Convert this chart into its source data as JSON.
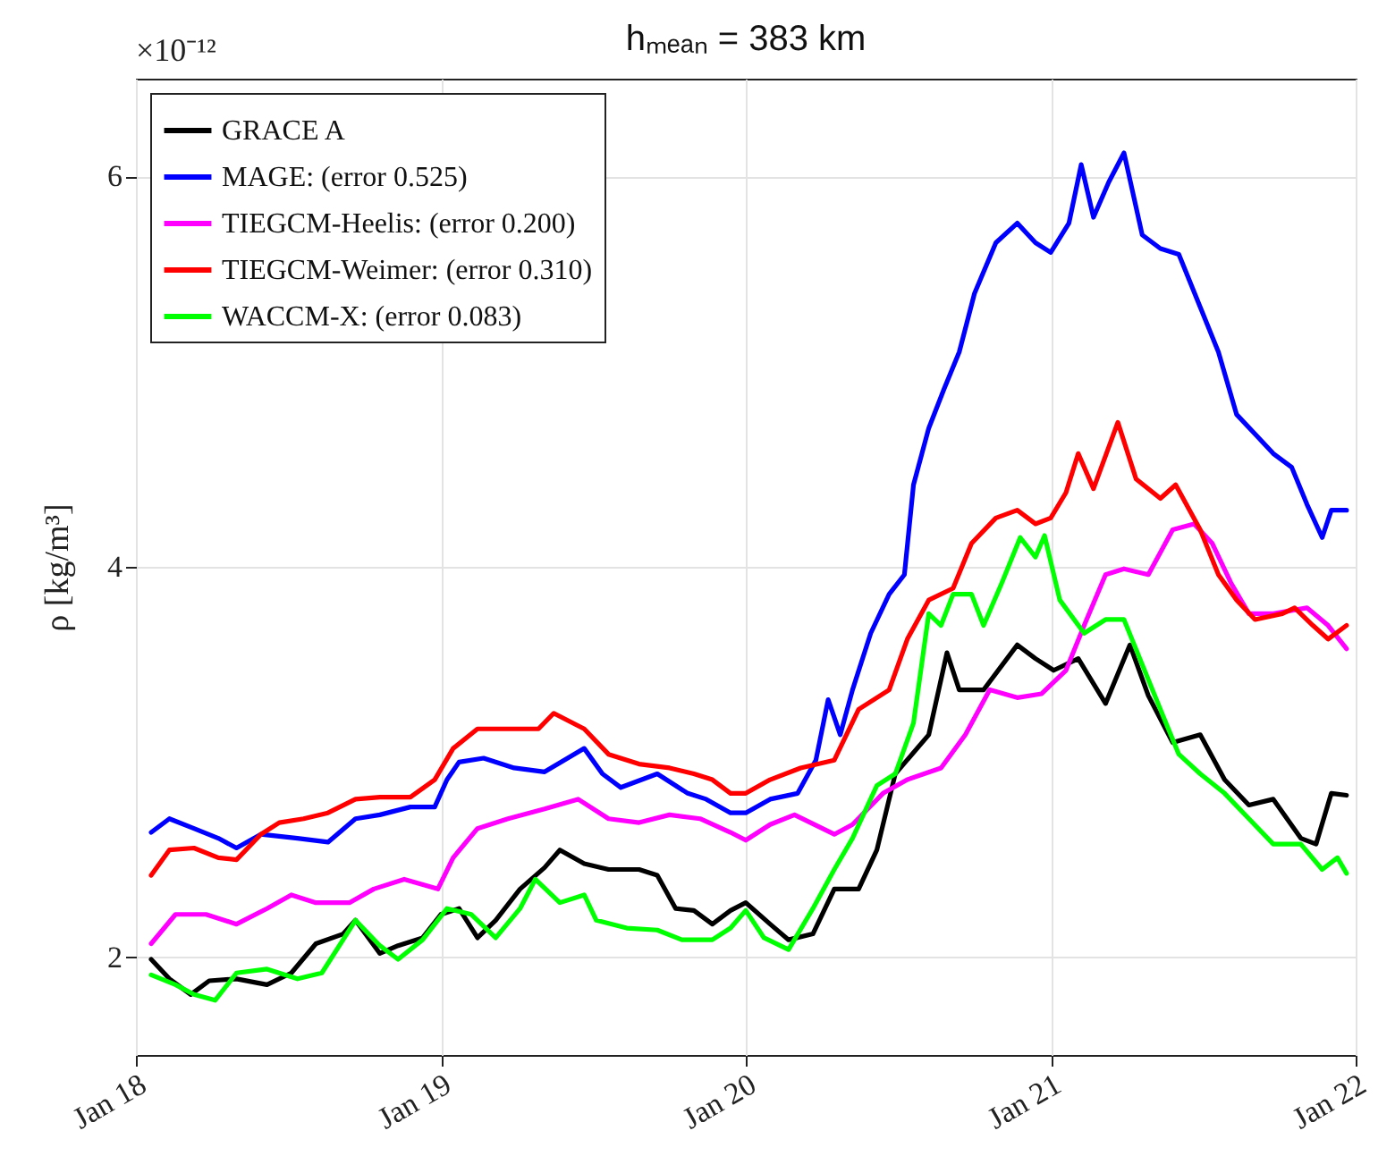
{
  "chart_data": {
    "type": "line",
    "title": "hₘₑₐₙ = 383 km",
    "ylabel": "ρ [kg/m³]",
    "annotations": [
      "×10⁻¹²"
    ],
    "xlim": [
      "--01-18",
      "--01-22"
    ],
    "xticks": [
      {
        "value": "--01-18",
        "label": "Jan 18"
      },
      {
        "value": "--01-19",
        "label": "Jan 19"
      },
      {
        "value": "--01-20",
        "label": "Jan 20"
      },
      {
        "value": "--01-21",
        "label": "Jan 21"
      },
      {
        "value": "--01-22",
        "label": "Jan 22"
      }
    ],
    "ylim": [
      1.5,
      6.5
    ],
    "yticks": [
      2,
      4,
      6
    ],
    "grid": true,
    "legend": "top left",
    "line_style": "solid",
    "series": [
      {
        "name": "GRACE A",
        "color": "#000000",
        "x": [
          "--01-18T01:12",
          "--01-18T02:38",
          "--01-18T04:19",
          "--01-18T05:46",
          "--01-18T07:55",
          "--01-18T10:19",
          "--01-18T12:14",
          "--01-18T14:10",
          "--01-18T16:19",
          "--01-18T17:17",
          "--01-18T19:12",
          "--01-18T20:38",
          "--01-18T22:34",
          "--01-19T00:00",
          "--01-19T01:26",
          "--01-19T02:53",
          "--01-19T04:19",
          "--01-19T06:14",
          "--01-19T08:10",
          "--01-19T09:22",
          "--01-19T11:17",
          "--01-19T13:12",
          "--01-19T15:36",
          "--01-19T17:02",
          "--01-19T18:29",
          "--01-19T19:55",
          "--01-19T21:22",
          "--01-19T22:48",
          "--01-20T00:00",
          "--01-20T01:55",
          "--01-20T03:22",
          "--01-20T05:17",
          "--01-20T06:58",
          "--01-20T08:53",
          "--01-20T10:19",
          "--01-20T11:46",
          "--01-20T14:24",
          "--01-20T15:50",
          "--01-20T16:48",
          "--01-20T18:43",
          "--01-20T21:22",
          "--01-20T22:48",
          "--01-21T00:14",
          "--01-21T02:10",
          "--01-21T04:19",
          "--01-21T06:14",
          "--01-21T07:41",
          "--01-21T09:36",
          "--01-21T11:46",
          "--01-21T13:41",
          "--01-21T15:36",
          "--01-21T17:31",
          "--01-21T19:41",
          "--01-21T20:53",
          "--01-21T22:05",
          "--01-21T23:17"
        ],
        "values": [
          1.99,
          1.89,
          1.81,
          1.88,
          1.89,
          1.86,
          1.92,
          2.07,
          2.12,
          2.19,
          2.02,
          2.06,
          2.1,
          2.22,
          2.25,
          2.1,
          2.19,
          2.35,
          2.46,
          2.55,
          2.48,
          2.45,
          2.45,
          2.42,
          2.25,
          2.24,
          2.17,
          2.24,
          2.28,
          2.17,
          2.09,
          2.12,
          2.35,
          2.35,
          2.55,
          2.94,
          3.14,
          3.56,
          3.37,
          3.37,
          3.6,
          3.53,
          3.47,
          3.53,
          3.3,
          3.6,
          3.34,
          3.1,
          3.14,
          2.91,
          2.78,
          2.81,
          2.61,
          2.58,
          2.84,
          2.83
        ]
      },
      {
        "name": "MAGE: (error 0.525)",
        "color": "#0000ff",
        "x": [
          "--01-18T01:12",
          "--01-18T02:38",
          "--01-18T04:34",
          "--01-18T06:29",
          "--01-18T07:55",
          "--01-18T09:50",
          "--01-18T12:43",
          "--01-18T15:07",
          "--01-18T17:17",
          "--01-18T19:12",
          "--01-18T21:36",
          "--01-18T23:31",
          "--01-19T00:29",
          "--01-19T01:26",
          "--01-19T03:22",
          "--01-19T05:46",
          "--01-19T08:10",
          "--01-19T11:17",
          "--01-19T12:43",
          "--01-19T14:10",
          "--01-19T17:02",
          "--01-19T19:26",
          "--01-19T20:53",
          "--01-19T22:48",
          "--01-20T00:00",
          "--01-20T01:55",
          "--01-20T04:05",
          "--01-20T05:31",
          "--01-20T06:29",
          "--01-20T07:26",
          "--01-20T08:24",
          "--01-20T09:50",
          "--01-20T11:17",
          "--01-20T12:29",
          "--01-20T13:12",
          "--01-20T14:24",
          "--01-20T15:36",
          "--01-20T16:48",
          "--01-20T18:00",
          "--01-20T19:41",
          "--01-20T21:22",
          "--01-20T22:48",
          "--01-21T00:00",
          "--01-21T01:26",
          "--01-21T02:24",
          "--01-21T03:22",
          "--01-21T04:34",
          "--01-21T05:46",
          "--01-21T07:12",
          "--01-21T08:38",
          "--01-21T10:05",
          "--01-21T11:46",
          "--01-21T13:12",
          "--01-21T14:38",
          "--01-21T16:05",
          "--01-21T17:31",
          "--01-21T18:58",
          "--01-21T20:10",
          "--01-21T21:22",
          "--01-21T22:05",
          "--01-21T23:17"
        ],
        "values": [
          2.64,
          2.71,
          2.66,
          2.61,
          2.56,
          2.63,
          2.61,
          2.59,
          2.71,
          2.73,
          2.77,
          2.77,
          2.91,
          3.0,
          3.02,
          2.97,
          2.95,
          3.07,
          2.94,
          2.87,
          2.94,
          2.84,
          2.81,
          2.74,
          2.74,
          2.81,
          2.84,
          3.01,
          3.32,
          3.14,
          3.37,
          3.66,
          3.86,
          3.96,
          4.42,
          4.71,
          4.91,
          5.1,
          5.4,
          5.66,
          5.76,
          5.66,
          5.61,
          5.76,
          6.06,
          5.79,
          5.97,
          6.12,
          5.7,
          5.63,
          5.6,
          5.33,
          5.1,
          4.78,
          4.68,
          4.58,
          4.51,
          4.32,
          4.15,
          4.29,
          4.29
        ]
      },
      {
        "name": "TIEGCM-Heelis: (error 0.200)",
        "color": "#ff00ff",
        "x": [
          "--01-18T01:12",
          "--01-18T03:07",
          "--01-18T05:31",
          "--01-18T07:55",
          "--01-18T10:19",
          "--01-18T12:14",
          "--01-18T14:10",
          "--01-18T16:48",
          "--01-18T18:43",
          "--01-18T21:07",
          "--01-18T23:46",
          "--01-19T00:58",
          "--01-19T02:53",
          "--01-19T05:17",
          "--01-19T08:10",
          "--01-19T10:48",
          "--01-19T13:12",
          "--01-19T15:36",
          "--01-19T18:00",
          "--01-19T20:24",
          "--01-19T22:48",
          "--01-20T00:00",
          "--01-20T01:55",
          "--01-20T03:50",
          "--01-20T06:58",
          "--01-20T08:24",
          "--01-20T10:48",
          "--01-20T12:43",
          "--01-20T15:22",
          "--01-20T17:17",
          "--01-20T19:12",
          "--01-20T21:22",
          "--01-20T23:17",
          "--01-21T01:12",
          "--01-21T02:38",
          "--01-21T04:19",
          "--01-21T05:46",
          "--01-21T07:41",
          "--01-21T09:36",
          "--01-21T11:17",
          "--01-21T12:43",
          "--01-21T14:10",
          "--01-21T15:36",
          "--01-21T17:31",
          "--01-21T20:10",
          "--01-21T21:50",
          "--01-21T23:17"
        ],
        "values": [
          2.07,
          2.22,
          2.22,
          2.17,
          2.25,
          2.32,
          2.28,
          2.28,
          2.35,
          2.4,
          2.35,
          2.51,
          2.66,
          2.71,
          2.76,
          2.81,
          2.71,
          2.69,
          2.73,
          2.71,
          2.64,
          2.6,
          2.68,
          2.73,
          2.63,
          2.68,
          2.84,
          2.91,
          2.97,
          3.14,
          3.37,
          3.33,
          3.35,
          3.47,
          3.7,
          3.96,
          3.99,
          3.96,
          4.19,
          4.22,
          4.12,
          3.92,
          3.76,
          3.76,
          3.79,
          3.7,
          3.58
        ]
      },
      {
        "name": "TIEGCM-Weimer: (error 0.310)",
        "color": "#ff0000",
        "x": [
          "--01-18T01:12",
          "--01-18T02:38",
          "--01-18T04:34",
          "--01-18T06:29",
          "--01-18T07:55",
          "--01-18T09:50",
          "--01-18T11:17",
          "--01-18T13:12",
          "--01-18T15:07",
          "--01-18T17:17",
          "--01-18T19:12",
          "--01-18T21:36",
          "--01-18T23:31",
          "--01-19T00:58",
          "--01-19T02:53",
          "--01-19T05:17",
          "--01-19T07:41",
          "--01-19T08:53",
          "--01-19T11:17",
          "--01-19T13:12",
          "--01-19T15:36",
          "--01-19T18:00",
          "--01-19T19:55",
          "--01-19T21:22",
          "--01-19T22:48",
          "--01-20T00:00",
          "--01-20T01:55",
          "--01-20T04:19",
          "--01-20T06:58",
          "--01-20T08:53",
          "--01-20T11:17",
          "--01-20T12:43",
          "--01-20T14:24",
          "--01-20T16:19",
          "--01-20T17:46",
          "--01-20T19:41",
          "--01-20T21:22",
          "--01-20T22:48",
          "--01-21T00:00",
          "--01-21T01:12",
          "--01-21T02:10",
          "--01-21T03:22",
          "--01-21T05:17",
          "--01-21T06:43",
          "--01-21T08:38",
          "--01-21T09:50",
          "--01-21T11:46",
          "--01-21T13:12",
          "--01-21T14:38",
          "--01-21T16:05",
          "--01-21T18:14",
          "--01-21T19:12",
          "--01-21T20:38",
          "--01-21T21:50",
          "--01-21T23:17"
        ],
        "values": [
          2.42,
          2.55,
          2.56,
          2.51,
          2.5,
          2.63,
          2.69,
          2.71,
          2.74,
          2.81,
          2.82,
          2.82,
          2.91,
          3.07,
          3.17,
          3.17,
          3.17,
          3.25,
          3.17,
          3.04,
          2.99,
          2.97,
          2.94,
          2.91,
          2.84,
          2.84,
          2.91,
          2.97,
          3.01,
          3.27,
          3.37,
          3.63,
          3.83,
          3.89,
          4.12,
          4.25,
          4.29,
          4.22,
          4.25,
          4.38,
          4.58,
          4.4,
          4.74,
          4.45,
          4.35,
          4.42,
          4.19,
          3.96,
          3.83,
          3.73,
          3.76,
          3.79,
          3.7,
          3.63,
          3.7
        ]
      },
      {
        "name": "WACCM-X: (error 0.083)",
        "color": "#00ff00",
        "x": [
          "--01-18T01:12",
          "--01-18T03:07",
          "--01-18T04:34",
          "--01-18T06:14",
          "--01-18T07:55",
          "--01-18T10:19",
          "--01-18T12:43",
          "--01-18T14:38",
          "--01-18T17:17",
          "--01-18T19:12",
          "--01-18T20:38",
          "--01-18T22:34",
          "--01-19T00:29",
          "--01-19T02:24",
          "--01-19T04:19",
          "--01-19T06:14",
          "--01-19T07:26",
          "--01-19T09:22",
          "--01-19T11:17",
          "--01-19T12:14",
          "--01-19T14:38",
          "--01-19T17:02",
          "--01-19T18:58",
          "--01-19T21:22",
          "--01-19T22:48",
          "--01-20T00:00",
          "--01-20T01:26",
          "--01-20T03:22",
          "--01-20T05:17",
          "--01-20T06:58",
          "--01-20T08:24",
          "--01-20T10:19",
          "--01-20T11:46",
          "--01-20T13:12",
          "--01-20T14:24",
          "--01-20T15:22",
          "--01-20T16:19",
          "--01-20T17:46",
          "--01-20T18:43",
          "--01-20T20:10",
          "--01-20T21:36",
          "--01-20T22:48",
          "--01-20T23:31",
          "--01-21T00:43",
          "--01-21T02:38",
          "--01-21T04:19",
          "--01-21T05:46",
          "--01-21T07:12",
          "--01-21T08:38",
          "--01-21T10:05",
          "--01-21T11:46",
          "--01-21T13:41",
          "--01-21T15:36",
          "--01-21T17:31",
          "--01-21T19:41",
          "--01-21T21:22",
          "--01-21T22:34",
          "--01-21T23:17"
        ],
        "values": [
          1.91,
          1.86,
          1.81,
          1.78,
          1.92,
          1.94,
          1.89,
          1.92,
          2.19,
          2.06,
          1.99,
          2.09,
          2.25,
          2.22,
          2.1,
          2.25,
          2.4,
          2.28,
          2.32,
          2.19,
          2.15,
          2.14,
          2.09,
          2.09,
          2.15,
          2.24,
          2.1,
          2.04,
          2.25,
          2.45,
          2.61,
          2.88,
          2.94,
          3.2,
          3.76,
          3.7,
          3.86,
          3.86,
          3.7,
          3.92,
          4.15,
          4.05,
          4.16,
          3.83,
          3.66,
          3.73,
          3.73,
          3.5,
          3.27,
          3.04,
          2.94,
          2.84,
          2.71,
          2.58,
          2.58,
          2.45,
          2.51,
          2.43
        ]
      }
    ]
  }
}
